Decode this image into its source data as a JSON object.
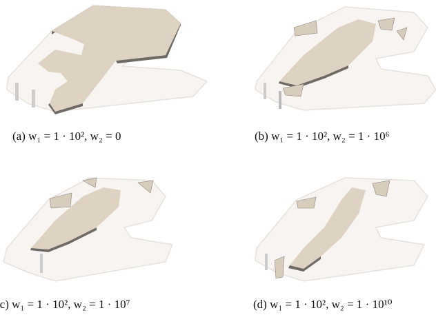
{
  "figure": {
    "panels": [
      {
        "caption": "(a) w₁ = 1 · 10², w₂ = 0"
      },
      {
        "caption": "(b) w₁ = 1 · 10², w₂ = 1 · 10⁶"
      },
      {
        "caption": "(c) w₁ = 1 · 10², w₂ = 1 · 10⁷"
      },
      {
        "caption": "(d) w₁ = 1 · 10², w₂ = 1 · 10¹⁰"
      }
    ]
  }
}
